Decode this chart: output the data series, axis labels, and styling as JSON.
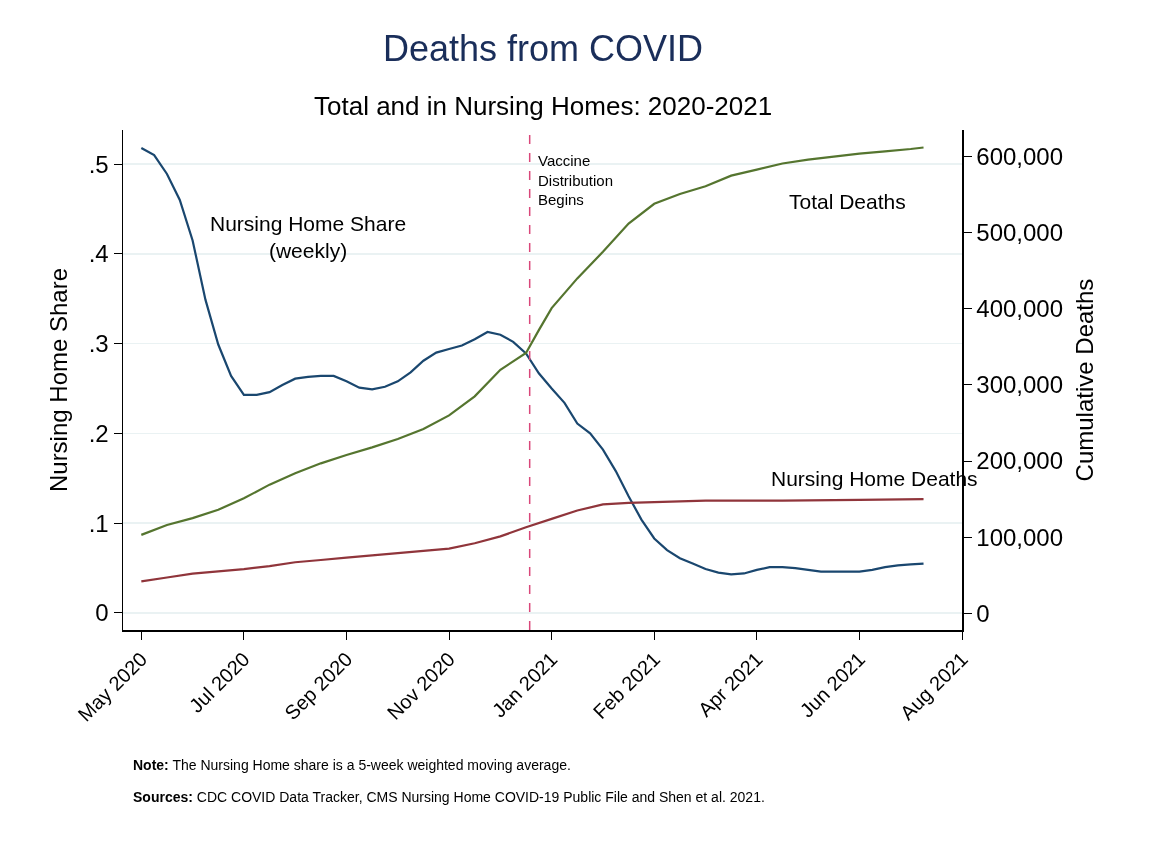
{
  "chart_data": {
    "type": "line",
    "title": "Deaths from COVID",
    "subtitle": "Total and in Nursing Homes: 2020-2021",
    "ylabel": "Nursing Home Share",
    "y2label": "Cumulative Deaths",
    "xlim": [
      "2020-05-13",
      "2021-08-14"
    ],
    "xticks": [
      {
        "value": "2020-05-23",
        "label": "May 2020"
      },
      {
        "value": "2020-07-18",
        "label": "Jul 2020"
      },
      {
        "value": "2020-09-12",
        "label": "Sep 2020"
      },
      {
        "value": "2020-11-07",
        "label": "Nov 2020"
      },
      {
        "value": "2021-01-02",
        "label": "Jan 2021"
      },
      {
        "value": "2021-02-27",
        "label": "Feb 2021"
      },
      {
        "value": "2021-04-24",
        "label": "Apr 2021"
      },
      {
        "value": "2021-06-19",
        "label": "Jun 2021"
      },
      {
        "value": "2021-08-14",
        "label": "Aug 2021"
      }
    ],
    "ylim": [
      -0.019,
      0.538
    ],
    "yticks": [
      0,
      {
        "value": 0.1,
        "label": ".1"
      },
      {
        "value": 0.2,
        "label": ".2"
      },
      {
        "value": 0.3,
        "label": ".3"
      },
      {
        "value": 0.4,
        "label": ".4"
      },
      {
        "value": 0.5,
        "label": ".5"
      }
    ],
    "y2lim": [
      -22000,
      635000
    ],
    "y2ticks": [
      0,
      {
        "value": 100000,
        "label": "100,000"
      },
      {
        "value": 200000,
        "label": "200,000"
      },
      {
        "value": 300000,
        "label": "300,000"
      },
      {
        "value": 400000,
        "label": "400,000"
      },
      {
        "value": 500000,
        "label": "500,000"
      },
      {
        "value": 600000,
        "label": "600,000"
      }
    ],
    "grid": "y",
    "series": [
      {
        "name": "Nursing Home Share\n(weekly)",
        "color": "#1a476f",
        "x": [
          "2020-05-23",
          "2020-05-30",
          "2020-06-06",
          "2020-06-13",
          "2020-06-20",
          "2020-06-27",
          "2020-07-04",
          "2020-07-11",
          "2020-07-18",
          "2020-07-25",
          "2020-08-01",
          "2020-08-08",
          "2020-08-15",
          "2020-08-22",
          "2020-08-29",
          "2020-09-05",
          "2020-09-12",
          "2020-09-19",
          "2020-09-26",
          "2020-10-03",
          "2020-10-10",
          "2020-10-17",
          "2020-10-24",
          "2020-10-31",
          "2020-11-07",
          "2020-11-14",
          "2020-11-21",
          "2020-11-28",
          "2020-12-05",
          "2020-12-12",
          "2020-12-19",
          "2020-12-26",
          "2021-01-02",
          "2021-01-09",
          "2021-01-16",
          "2021-01-23",
          "2021-01-30",
          "2021-02-06",
          "2021-02-13",
          "2021-02-20",
          "2021-02-27",
          "2021-03-06",
          "2021-03-13",
          "2021-03-20",
          "2021-03-27",
          "2021-04-03",
          "2021-04-10",
          "2021-04-17",
          "2021-04-24",
          "2021-05-01",
          "2021-05-08",
          "2021-05-15",
          "2021-05-22",
          "2021-05-29",
          "2021-06-05",
          "2021-06-12",
          "2021-06-19",
          "2021-06-26",
          "2021-07-03",
          "2021-07-10",
          "2021-07-17",
          "2021-07-24"
        ],
        "values": [
          0.518,
          0.51,
          0.489,
          0.46,
          0.415,
          0.349,
          0.299,
          0.264,
          0.243,
          0.243,
          0.246,
          0.254,
          0.261,
          0.263,
          0.264,
          0.264,
          0.258,
          0.251,
          0.249,
          0.252,
          0.258,
          0.268,
          0.281,
          0.29,
          0.294,
          0.298,
          0.305,
          0.313,
          0.31,
          0.302,
          0.289,
          0.267,
          0.25,
          0.234,
          0.211,
          0.2,
          0.182,
          0.158,
          0.13,
          0.104,
          0.083,
          0.07,
          0.061,
          0.055,
          0.049,
          0.045,
          0.043,
          0.044,
          0.048,
          0.051,
          0.051,
          0.05,
          0.048,
          0.046,
          0.046,
          0.046,
          0.046,
          0.048,
          0.051,
          0.053,
          0.054,
          0.055
        ]
      },
      {
        "name": "Total Deaths",
        "color": "#55752f",
        "axis": "y2",
        "x": [
          "2020-05-23",
          "2020-06-06",
          "2020-06-20",
          "2020-07-04",
          "2020-07-18",
          "2020-08-01",
          "2020-08-15",
          "2020-08-29",
          "2020-09-12",
          "2020-09-26",
          "2020-10-10",
          "2020-10-24",
          "2020-11-07",
          "2020-11-21",
          "2020-12-05",
          "2020-12-19",
          "2020-12-26",
          "2021-01-02",
          "2021-01-16",
          "2021-01-30",
          "2021-02-13",
          "2021-02-27",
          "2021-03-13",
          "2021-03-27",
          "2021-04-10",
          "2021-04-24",
          "2021-05-08",
          "2021-05-22",
          "2021-06-05",
          "2021-06-19",
          "2021-07-03",
          "2021-07-17",
          "2021-07-24"
        ],
        "values": [
          103000,
          116000,
          125000,
          136000,
          151000,
          169000,
          184000,
          197000,
          208000,
          218000,
          229000,
          242000,
          260000,
          285000,
          320000,
          342000,
          372000,
          401000,
          440000,
          475000,
          512000,
          538000,
          551000,
          561000,
          575000,
          583000,
          591000,
          596000,
          600000,
          604000,
          607000,
          610000,
          612000
        ]
      },
      {
        "name": "Nursing Home Deaths",
        "color": "#90353b",
        "axis": "y2",
        "x": [
          "2020-05-23",
          "2020-06-06",
          "2020-06-20",
          "2020-07-04",
          "2020-07-18",
          "2020-08-01",
          "2020-08-15",
          "2020-08-29",
          "2020-09-12",
          "2020-09-26",
          "2020-10-10",
          "2020-10-24",
          "2020-11-07",
          "2020-11-21",
          "2020-12-05",
          "2020-12-19",
          "2021-01-02",
          "2021-01-16",
          "2021-01-30",
          "2021-02-13",
          "2021-02-27",
          "2021-03-27",
          "2021-05-08",
          "2021-06-19",
          "2021-07-24"
        ],
        "values": [
          42000,
          47000,
          52000,
          55000,
          58000,
          62000,
          67000,
          70000,
          73000,
          76000,
          79000,
          82000,
          85000,
          92000,
          101000,
          113000,
          124000,
          135000,
          143000,
          145000,
          146000,
          148000,
          148000,
          149000,
          150000
        ]
      }
    ],
    "ref_lines": [
      {
        "axis": "x",
        "value": "2020-12-21",
        "label": "Vaccine\nDistribution\nBegins",
        "color": "#d9477a",
        "line_style": "dashed"
      }
    ],
    "annotations": [
      "Note: The Nursing Home share is a 5-week weighted moving average.",
      "Sources: CDC COVID Data Tracker, CMS Nursing Home COVID-19 Public File and Shen et al. 2021."
    ]
  }
}
